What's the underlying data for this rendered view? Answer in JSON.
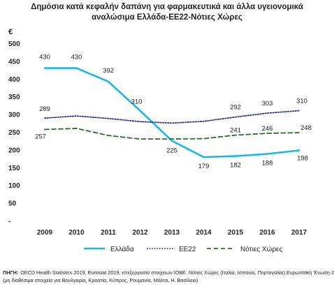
{
  "chart_data": {
    "type": "line",
    "title_line1": "Δημόσια κατά κεφαλήν δαπάνη για φαρμακευτικά και άλλα υγειονομικά",
    "title_line2": "αναλώσιμα Ελλάδα-ΕΕ22-Νότιες Χώρες",
    "unit_label": "€",
    "x": [
      "2009",
      "2010",
      "2011",
      "2012",
      "2013",
      "2014",
      "2015",
      "2016",
      "2017"
    ],
    "y_ticks": [
      "500",
      "450",
      "400",
      "350",
      "300",
      "250",
      "200",
      "150",
      "100",
      "50",
      "-"
    ],
    "ylim": [
      0,
      500
    ],
    "grid": false,
    "legend_position": "bottom",
    "series": [
      {
        "name": "Ελλάδα",
        "color": "#1fb6e8",
        "style": "solid",
        "values": [
          430,
          430,
          392,
          310,
          225,
          179,
          182,
          188,
          198
        ],
        "labels": [
          "430",
          "430",
          "392",
          "310",
          "225",
          "179",
          "182",
          "188",
          "198"
        ]
      },
      {
        "name": "ΕΕ22",
        "color": "#2e3a86",
        "style": "dotted",
        "values": [
          289,
          295,
          288,
          279,
          275,
          280,
          292,
          303,
          310
        ],
        "labels": [
          "289",
          "",
          "",
          "",
          "",
          "",
          "292",
          "303",
          "310"
        ]
      },
      {
        "name": "Νότιες Χώρες",
        "color": "#2f6b2f",
        "style": "dashed",
        "values": [
          257,
          260,
          240,
          230,
          230,
          231,
          241,
          246,
          248
        ],
        "labels": [
          "257",
          "",
          "",
          "",
          "",
          "",
          "241",
          "246",
          "248"
        ]
      }
    ]
  },
  "source": {
    "label": "ΠΗΓΗ:",
    "line1": "OECD Health Statistics 2019, Eurostat 2019, επεξεργασία στοιχείων ΙΟΒΕ. Νότιες Χώρες (Ιταλία, Ισπανία, Πορτογαλία),Ευρωπαϊκή Ένωση-22:",
    "line2": "(μη διαθέσιμα στοιχεία για Βουλγαρία, Κροατία, Κύπρος, Ρουμανία, Μάλτα, Η. Βασίλειο)"
  }
}
